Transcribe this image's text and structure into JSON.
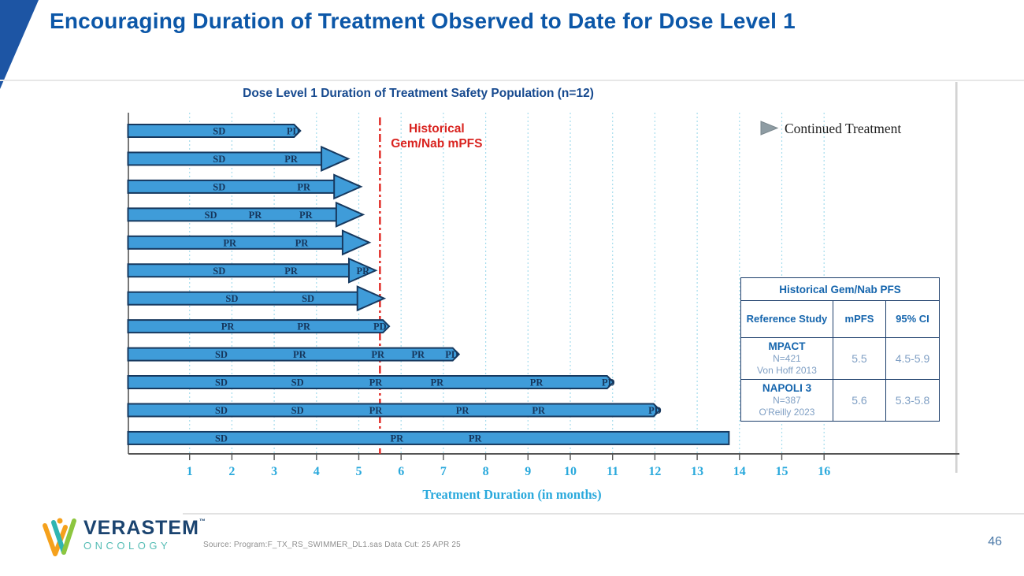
{
  "slide": {
    "title": "Encouraging Duration of Treatment Observed to Date for Dose Level 1",
    "page_number": "46",
    "source_note": "Source: Program:F_TX_RS_SWIMMER_DL1.sas  Data Cut: 25 APR 25",
    "logo": {
      "brand": "VERASTEM",
      "trademark": "™",
      "sub_brand": "ONCOLOGY"
    }
  },
  "chart_data": {
    "type": "bar",
    "subtype": "swimmer-plot",
    "title": "Dose Level 1 Duration of Treatment Safety Population (n=12)",
    "xlabel": "Treatment Duration (in months)",
    "ylabel": "",
    "xlim": [
      0,
      16.5
    ],
    "x_ticks": [
      1,
      2,
      3,
      4,
      5,
      6,
      7,
      8,
      9,
      10,
      11,
      12,
      13,
      14,
      15,
      16
    ],
    "grid": "dotted-vertical",
    "legend": {
      "position": "top-right",
      "marker": "right-arrow",
      "label": "Continued Treatment"
    },
    "reference_line": {
      "month": 5.5,
      "style": "dash-dot",
      "label_line1": "Historical",
      "label_line2": "Gem/Nab mPFS"
    },
    "bars": [
      {
        "end": 3.6,
        "cap": "pd",
        "segments": [
          {
            "t": "SD",
            "m": 1.7
          },
          {
            "t": "PD",
            "m": 3.45
          }
        ]
      },
      {
        "end": 4.75,
        "cap": "arrow",
        "segments": [
          {
            "t": "SD",
            "m": 1.7
          },
          {
            "t": "PR",
            "m": 3.4
          }
        ]
      },
      {
        "end": 5.05,
        "cap": "arrow",
        "segments": [
          {
            "t": "SD",
            "m": 1.7
          },
          {
            "t": "PR",
            "m": 3.7
          }
        ]
      },
      {
        "end": 5.1,
        "cap": "arrow",
        "segments": [
          {
            "t": "SD",
            "m": 1.5
          },
          {
            "t": "PR",
            "m": 2.55
          },
          {
            "t": "PR",
            "m": 3.75
          }
        ]
      },
      {
        "end": 5.25,
        "cap": "arrow",
        "segments": [
          {
            "t": "PR",
            "m": 1.95
          },
          {
            "t": "PR",
            "m": 3.65
          }
        ]
      },
      {
        "end": 5.4,
        "cap": "arrow",
        "segments": [
          {
            "t": "SD",
            "m": 1.7
          },
          {
            "t": "PR",
            "m": 3.4
          },
          {
            "t": "PR",
            "m": 5.1
          }
        ]
      },
      {
        "end": 5.6,
        "cap": "arrow",
        "segments": [
          {
            "t": "SD",
            "m": 2.0
          },
          {
            "t": "SD",
            "m": 3.8
          }
        ]
      },
      {
        "end": 5.7,
        "cap": "pd",
        "segments": [
          {
            "t": "PR",
            "m": 1.9
          },
          {
            "t": "PR",
            "m": 3.7
          },
          {
            "t": "PD",
            "m": 5.5
          }
        ]
      },
      {
        "end": 7.35,
        "cap": "pd",
        "segments": [
          {
            "t": "SD",
            "m": 1.75
          },
          {
            "t": "PR",
            "m": 3.6
          },
          {
            "t": "PR",
            "m": 5.45
          },
          {
            "t": "PR",
            "m": 6.4
          },
          {
            "t": "PD",
            "m": 7.2
          }
        ]
      },
      {
        "end": 11.0,
        "cap": "pd",
        "segments": [
          {
            "t": "SD",
            "m": 1.75
          },
          {
            "t": "SD",
            "m": 3.55
          },
          {
            "t": "PR",
            "m": 5.4
          },
          {
            "t": "PR",
            "m": 6.85
          },
          {
            "t": "PR",
            "m": 9.2
          },
          {
            "t": "PD",
            "m": 10.9
          }
        ]
      },
      {
        "end": 12.1,
        "cap": "pd",
        "segments": [
          {
            "t": "SD",
            "m": 1.75
          },
          {
            "t": "SD",
            "m": 3.55
          },
          {
            "t": "PR",
            "m": 5.4
          },
          {
            "t": "PR",
            "m": 7.45
          },
          {
            "t": "PR",
            "m": 9.25
          },
          {
            "t": "PD",
            "m": 12.0
          }
        ]
      },
      {
        "end": 13.75,
        "cap": "flat",
        "segments": [
          {
            "t": "SD",
            "m": 1.75
          },
          {
            "t": "PR",
            "m": 5.9
          },
          {
            "t": "PR",
            "m": 7.75
          }
        ]
      }
    ],
    "colors": {
      "bar_fill": "#3f9cd9",
      "bar_border": "#17395f",
      "bar_label": "#16365c",
      "grid": "#a5dced",
      "axis": "#555555",
      "tick_label": "#2aa9dc",
      "reference_red": "#e02520",
      "reference_text_red": "#d9231f",
      "legend_arrow": "#8e9ca3",
      "legend_text": "#1f1f1f"
    }
  },
  "table": {
    "title": "Historical Gem/Nab PFS",
    "columns": [
      "Reference Study",
      "mPFS",
      "95% CI"
    ],
    "rows": [
      {
        "study": "MPACT",
        "n": "N=421",
        "ref": "Von Hoff 2013",
        "mpfs": "5.5",
        "ci": "4.5-5.9"
      },
      {
        "study": "NAPOLI 3",
        "n": "N=387",
        "ref": "O'Reilly 2023",
        "mpfs": "5.6",
        "ci": "5.3-5.8"
      }
    ]
  }
}
